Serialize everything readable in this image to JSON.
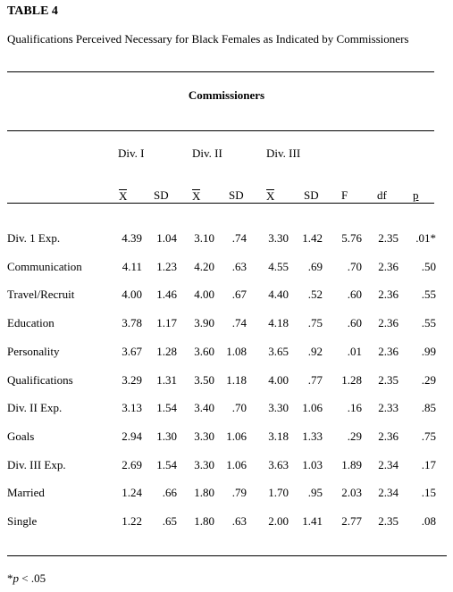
{
  "title": "TABLE 4",
  "subtitle": "Qualifications Perceived Necessary for Black Females as Indicated by Commissioners",
  "group_heading": "Commissioners",
  "divisions": [
    "Div. I",
    "Div. II",
    "Div. III"
  ],
  "columns": [
    "X",
    "SD",
    "X",
    "SD",
    "X",
    "SD",
    "F",
    "df",
    "p"
  ],
  "rows": [
    {
      "label": "Div. 1 Exp.",
      "values": [
        "4.39",
        "1.04",
        "3.10",
        ".74",
        "3.30",
        "1.42",
        "5.76",
        "2.35",
        ".01*"
      ]
    },
    {
      "label": "Communication",
      "values": [
        "4.11",
        "1.23",
        "4.20",
        ".63",
        "4.55",
        ".69",
        ".70",
        "2.36",
        ".50"
      ]
    },
    {
      "label": "Travel/Recruit",
      "values": [
        "4.00",
        "1.46",
        "4.00",
        ".67",
        "4.40",
        ".52",
        ".60",
        "2.36",
        ".55"
      ]
    },
    {
      "label": "Education",
      "values": [
        "3.78",
        "1.17",
        "3.90",
        ".74",
        "4.18",
        ".75",
        ".60",
        "2.36",
        ".55"
      ]
    },
    {
      "label": "Personality",
      "values": [
        "3.67",
        "1.28",
        "3.60",
        "1.08",
        "3.65",
        ".92",
        ".01",
        "2.36",
        ".99"
      ]
    },
    {
      "label": "Qualifications",
      "values": [
        "3.29",
        "1.31",
        "3.50",
        "1.18",
        "4.00",
        ".77",
        "1.28",
        "2.35",
        ".29"
      ]
    },
    {
      "label": "Div. II Exp.",
      "values": [
        "3.13",
        "1.54",
        "3.40",
        ".70",
        "3.30",
        "1.06",
        ".16",
        "2.33",
        ".85"
      ]
    },
    {
      "label": "Goals",
      "values": [
        "2.94",
        "1.30",
        "3.30",
        "1.06",
        "3.18",
        "1.33",
        ".29",
        "2.36",
        ".75"
      ]
    },
    {
      "label": "Div. III Exp.",
      "values": [
        "2.69",
        "1.54",
        "3.30",
        "1.06",
        "3.63",
        "1.03",
        "1.89",
        "2.34",
        ".17"
      ]
    },
    {
      "label": "Married",
      "values": [
        "1.24",
        ".66",
        "1.80",
        ".79",
        "1.70",
        ".95",
        "2.03",
        "2.34",
        ".15"
      ]
    },
    {
      "label": " Single",
      "values": [
        "1.22",
        ".65",
        "1.80",
        ".63",
        "2.00",
        "1.41",
        "2.77",
        "2.35",
        ".08"
      ]
    }
  ],
  "footnote": {
    "prefix": "*",
    "symbol": "p",
    "text": " < .05"
  }
}
